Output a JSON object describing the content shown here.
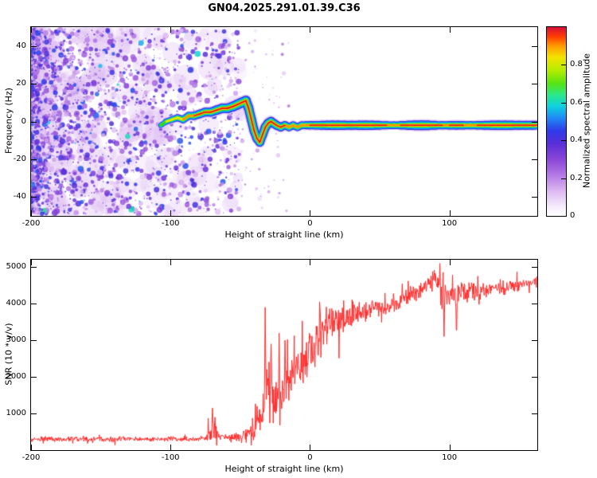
{
  "title": "GN04.2025.291.01.39.C36",
  "chart_data": [
    {
      "type": "heatmap",
      "title": "GN04.2025.291.01.39.C36",
      "xlabel": "Height of straight line (km)",
      "ylabel": "Frequency (Hz)",
      "xlim": [
        -200,
        163
      ],
      "ylim": [
        -50,
        50
      ],
      "xticks": [
        -200,
        -100,
        0,
        100
      ],
      "yticks": [
        -40,
        -20,
        0,
        20,
        40
      ],
      "grid": false,
      "colorbar": {
        "label": "Normalized spectral amplitude",
        "ticks": [
          0,
          0.2,
          0.4,
          0.6,
          0.8
        ],
        "range": [
          0,
          1
        ],
        "stops": [
          [
            0.0,
            "#ffffff"
          ],
          [
            0.05,
            "#f5ecfc"
          ],
          [
            0.13,
            "#ddb9f1"
          ],
          [
            0.22,
            "#b277e4"
          ],
          [
            0.3,
            "#8a46d8"
          ],
          [
            0.38,
            "#5c2fd8"
          ],
          [
            0.45,
            "#2f3ae8"
          ],
          [
            0.52,
            "#1e8cf5"
          ],
          [
            0.58,
            "#0fd0e0"
          ],
          [
            0.64,
            "#2ae88c"
          ],
          [
            0.7,
            "#55e312"
          ],
          [
            0.77,
            "#b5ec00"
          ],
          [
            0.84,
            "#f3e300"
          ],
          [
            0.9,
            "#ff9b00"
          ],
          [
            0.95,
            "#ff3c00"
          ],
          [
            1.0,
            "#d50f3c"
          ]
        ]
      },
      "noise_field": {
        "description": "random purple speckle noise filling all frequencies, dense at -200 km and fading out near -55 km",
        "x_range": [
          -200,
          -50
        ],
        "sparse_x_range": [
          -65,
          -15
        ],
        "amplitude_range": [
          0.05,
          0.55
        ]
      },
      "trace": {
        "description": "high-amplitude echo trace: rises from ~0 Hz at -105 km to ~+11 Hz at -48 km, dips to ~-11 Hz at -36 km, then flat near -2 Hz to right edge",
        "points": [
          [
            -107,
            -2,
            0.45
          ],
          [
            -103,
            0,
            0.55
          ],
          [
            -99,
            1,
            0.6
          ],
          [
            -95,
            2,
            0.62
          ],
          [
            -91,
            1,
            0.68
          ],
          [
            -87,
            3,
            0.7
          ],
          [
            -83,
            3,
            0.74
          ],
          [
            -79,
            4,
            0.78
          ],
          [
            -75,
            5,
            0.8
          ],
          [
            -71,
            5,
            0.82
          ],
          [
            -67,
            6,
            0.84
          ],
          [
            -63,
            7,
            0.86
          ],
          [
            -59,
            7,
            0.88
          ],
          [
            -55,
            8,
            0.9
          ],
          [
            -52,
            9,
            0.92
          ],
          [
            -49,
            10,
            0.93
          ],
          [
            -46,
            11,
            0.9
          ],
          [
            -44,
            7,
            0.86
          ],
          [
            -42,
            1,
            0.84
          ],
          [
            -40,
            -5,
            0.84
          ],
          [
            -38,
            -9,
            0.82
          ],
          [
            -36,
            -11,
            0.8
          ],
          [
            -34,
            -7,
            0.82
          ],
          [
            -32,
            -3,
            0.84
          ],
          [
            -30,
            -1,
            0.85
          ],
          [
            -28,
            0,
            0.84
          ],
          [
            -26,
            -1,
            0.82
          ],
          [
            -24,
            -2,
            0.8
          ],
          [
            -21,
            -3,
            0.78
          ],
          [
            -18,
            -2,
            0.75
          ],
          [
            -15,
            -3,
            0.72
          ],
          [
            -12,
            -2,
            0.7
          ],
          [
            -9,
            -3,
            0.68
          ],
          [
            -6,
            -2,
            0.7
          ],
          [
            -3,
            -2,
            0.72
          ],
          [
            0,
            -2,
            0.74
          ],
          [
            4,
            -2,
            0.77
          ],
          [
            8,
            -2,
            0.8
          ],
          [
            12,
            -2,
            0.82
          ],
          [
            16,
            -2,
            0.84
          ],
          [
            20,
            -2,
            0.85
          ],
          [
            25,
            -2,
            0.82
          ],
          [
            30,
            -2,
            0.8
          ],
          [
            35,
            -2,
            0.83
          ],
          [
            40,
            -2,
            0.85
          ],
          [
            45,
            -2,
            0.82
          ],
          [
            50,
            -2,
            0.78
          ],
          [
            55,
            -2,
            0.72
          ],
          [
            60,
            -2,
            0.66
          ],
          [
            65,
            -2,
            0.72
          ],
          [
            70,
            -2,
            0.8
          ],
          [
            75,
            -2,
            0.86
          ],
          [
            80,
            -2,
            0.9
          ],
          [
            85,
            -2,
            0.86
          ],
          [
            90,
            -2,
            0.78
          ],
          [
            95,
            -2,
            0.72
          ],
          [
            100,
            -2,
            0.76
          ],
          [
            105,
            -2,
            0.8
          ],
          [
            110,
            -2,
            0.76
          ],
          [
            115,
            -2,
            0.72
          ],
          [
            120,
            -2,
            0.76
          ],
          [
            125,
            -2,
            0.8
          ],
          [
            130,
            -2,
            0.84
          ],
          [
            135,
            -2,
            0.86
          ],
          [
            140,
            -2,
            0.86
          ],
          [
            145,
            -2,
            0.82
          ],
          [
            150,
            -2,
            0.8
          ],
          [
            155,
            -2,
            0.8
          ],
          [
            160,
            -2,
            0.8
          ],
          [
            163,
            -2,
            0.78
          ]
        ]
      }
    },
    {
      "type": "line",
      "xlabel": "Height of straight line (km)",
      "ylabel": "SNR (10 * v/v)",
      "xlim": [
        -200,
        163
      ],
      "ylim": [
        0,
        5200
      ],
      "xticks": [
        -200,
        -100,
        0,
        100
      ],
      "yticks": [
        1000,
        2000,
        3000,
        4000,
        5000
      ],
      "grid": false,
      "series": [
        {
          "name": "SNR",
          "color": "#ff2a2a",
          "description": "noisy SNR profile: flat baseline ~300 below -75 km, rises steeply between -40 and 10 km, plateau ~4000-4700 above 40 km; captured as mean envelope + noise half-band + extreme spikes",
          "envelope_x": [
            -200,
            -195,
            -190,
            -185,
            -180,
            -175,
            -170,
            -165,
            -160,
            -155,
            -150,
            -145,
            -140,
            -135,
            -130,
            -125,
            -120,
            -115,
            -110,
            -105,
            -100,
            -95,
            -90,
            -85,
            -80,
            -75,
            -70,
            -65,
            -60,
            -55,
            -50,
            -45,
            -40,
            -35,
            -30,
            -25,
            -20,
            -15,
            -10,
            -5,
            0,
            5,
            10,
            15,
            20,
            25,
            30,
            35,
            40,
            45,
            50,
            55,
            60,
            65,
            70,
            75,
            80,
            85,
            90,
            95,
            100,
            105,
            110,
            115,
            120,
            125,
            130,
            135,
            140,
            145,
            150,
            155,
            160
          ],
          "mean": [
            300,
            295,
            305,
            300,
            290,
            300,
            310,
            300,
            295,
            305,
            300,
            290,
            300,
            305,
            295,
            300,
            310,
            300,
            295,
            300,
            305,
            295,
            300,
            300,
            310,
            320,
            520,
            420,
            330,
            340,
            360,
            420,
            600,
            900,
            1500,
            1400,
            1600,
            1900,
            2200,
            2400,
            2700,
            3000,
            3300,
            3500,
            3500,
            3600,
            3700,
            3700,
            3800,
            3900,
            3900,
            3900,
            4000,
            4100,
            4200,
            4300,
            4400,
            4500,
            4700,
            4300,
            4300,
            4200,
            4300,
            4400,
            4300,
            4400,
            4400,
            4500,
            4400,
            4500,
            4500,
            4550,
            4600
          ],
          "band": [
            90,
            90,
            90,
            90,
            90,
            90,
            90,
            90,
            90,
            90,
            90,
            90,
            90,
            90,
            90,
            90,
            90,
            90,
            90,
            90,
            90,
            90,
            90,
            90,
            90,
            120,
            400,
            250,
            150,
            160,
            200,
            300,
            500,
            900,
            1400,
            1000,
            950,
            900,
            800,
            750,
            800,
            900,
            700,
            550,
            600,
            500,
            500,
            420,
            380,
            320,
            300,
            350,
            320,
            300,
            300,
            350,
            320,
            350,
            420,
            700,
            420,
            600,
            350,
            320,
            350,
            260,
            260,
            260,
            250,
            220,
            220,
            210,
            200
          ],
          "spikes": [
            [
              -70,
              1150
            ],
            [
              -68,
              900
            ],
            [
              -32,
              3900
            ],
            [
              -28,
              2900
            ],
            [
              -22,
              3200
            ],
            [
              -18,
              3000
            ],
            [
              7,
              4050
            ],
            [
              93,
              5100
            ],
            [
              96,
              3100
            ],
            [
              105,
              3300
            ]
          ]
        }
      ]
    }
  ]
}
